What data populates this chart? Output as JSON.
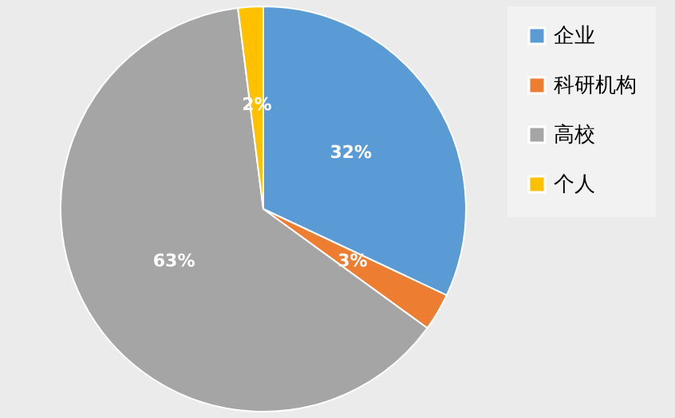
{
  "chart_data": {
    "type": "pie",
    "categories": [
      "企业",
      "科研机构",
      "高校",
      "个人"
    ],
    "values": [
      32,
      3,
      63,
      2
    ],
    "value_labels": [
      "32%",
      "3%",
      "63%",
      "2%"
    ],
    "colors": [
      "#5b9bd5",
      "#ed7d31",
      "#a5a5a5",
      "#ffc000"
    ],
    "legend": "right"
  }
}
